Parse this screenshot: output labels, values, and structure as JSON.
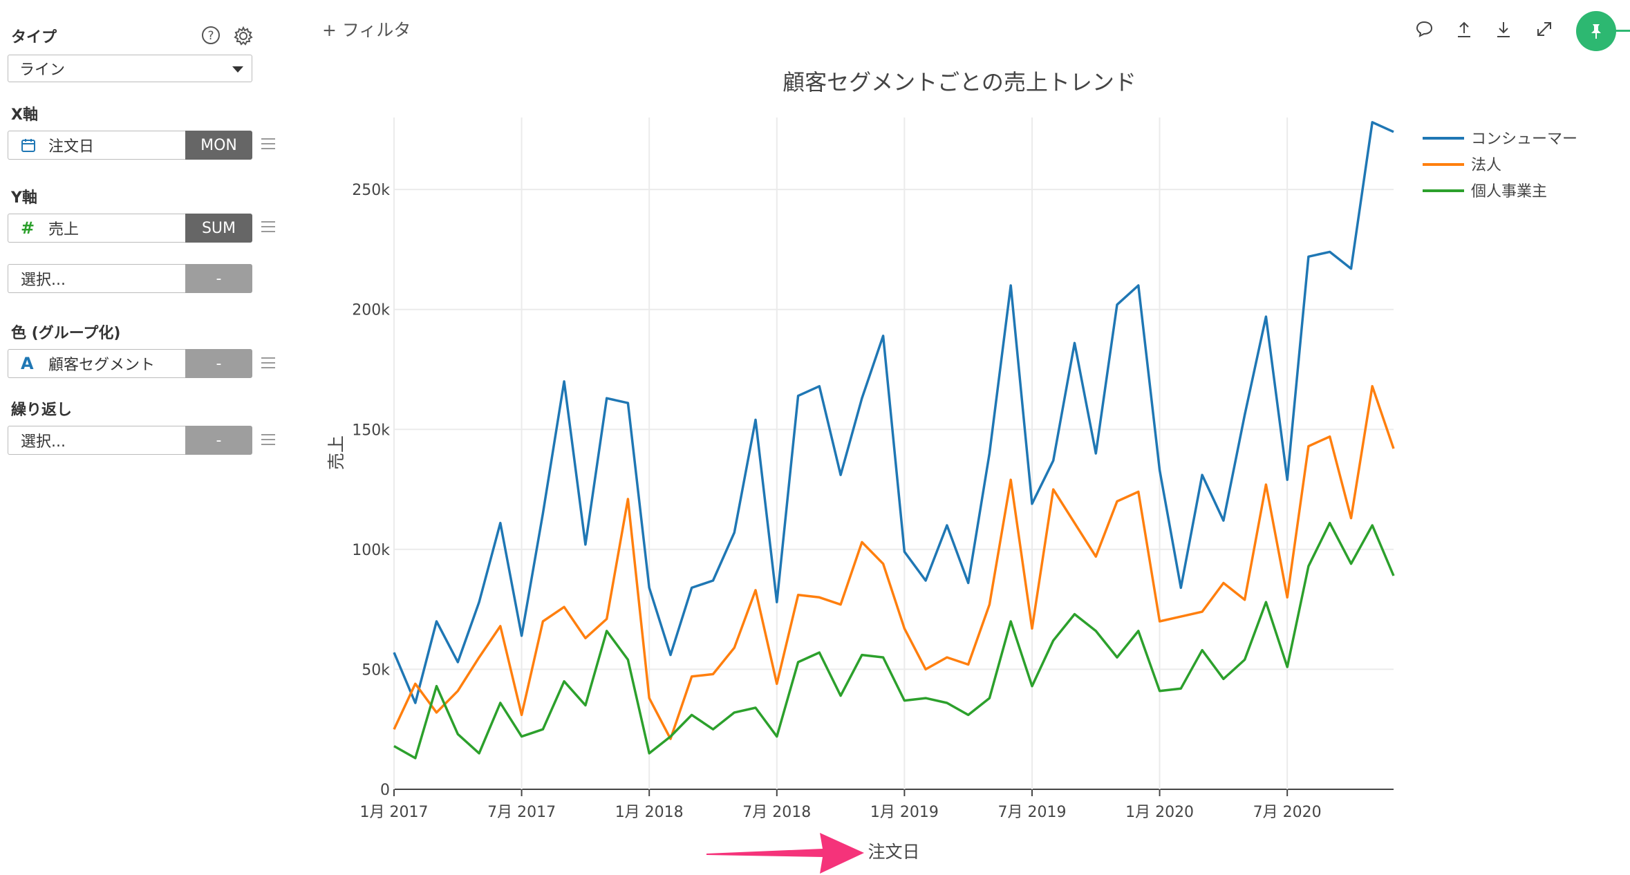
{
  "sidebar": {
    "type_label": "タイプ",
    "type_value": "ライン",
    "help_icon": "help-icon",
    "settings_icon": "gear-icon",
    "x_label": "X軸",
    "x_field": "注文日",
    "x_agg": "MON",
    "y_label": "Y軸",
    "y_field": "売上",
    "y_agg": "SUM",
    "y2_placeholder": "選択...",
    "y2_agg": "-",
    "color_label": "色 (グループ化)",
    "color_field": "顧客セグメント",
    "color_agg": "-",
    "repeat_label": "繰り返し",
    "repeat_placeholder": "選択...",
    "repeat_agg": "-"
  },
  "toolbar": {
    "filter_label": "+ フィルタ",
    "icons": [
      "comment-icon",
      "upload-icon",
      "download-icon",
      "expand-icon",
      "pin-icon"
    ]
  },
  "colors": {
    "consumer": "#1f77b4",
    "corporate": "#ff7f0e",
    "home_office": "#2ca02c",
    "accent": "#2db871",
    "arrow": "#f5337a"
  },
  "chart_data": {
    "type": "line",
    "title": "顧客セグメントごとの売上トレンド",
    "xlabel": "注文日",
    "ylabel": "売上",
    "x_tick_labels": [
      "1月 2017",
      "7月 2017",
      "1月 2018",
      "7月 2018",
      "1月 2019",
      "7月 2019",
      "1月 2020",
      "7月 2020"
    ],
    "y_tick_labels": [
      "0",
      "50k",
      "100k",
      "150k",
      "200k",
      "250k"
    ],
    "ylim": [
      0,
      280000
    ],
    "x_start": "2017-01",
    "legend_position": "top-right",
    "grid": true,
    "series": [
      {
        "name": "コンシューマー",
        "values": [
          57000,
          36000,
          70000,
          53000,
          78000,
          111000,
          64000,
          115000,
          170000,
          102000,
          163000,
          161000,
          84000,
          56000,
          84000,
          87000,
          107000,
          154000,
          78000,
          164000,
          168000,
          131000,
          163000,
          189000,
          99000,
          87000,
          110000,
          86000,
          140000,
          210000,
          119000,
          137000,
          186000,
          140000,
          202000,
          210000,
          133000,
          84000,
          131000,
          112000,
          156000,
          197000,
          129000,
          222000,
          224000,
          217000,
          278000,
          274000
        ]
      },
      {
        "name": "法人",
        "values": [
          25000,
          44000,
          32000,
          41000,
          55000,
          68000,
          31000,
          70000,
          76000,
          63000,
          71000,
          121000,
          38000,
          21000,
          47000,
          48000,
          59000,
          83000,
          44000,
          81000,
          80000,
          77000,
          103000,
          94000,
          67000,
          50000,
          55000,
          52000,
          77000,
          129000,
          67000,
          125000,
          111000,
          97000,
          120000,
          124000,
          70000,
          72000,
          74000,
          86000,
          79000,
          127000,
          80000,
          143000,
          147000,
          113000,
          168000,
          142000
        ]
      },
      {
        "name": "個人事業主",
        "values": [
          18000,
          13000,
          43000,
          23000,
          15000,
          36000,
          22000,
          25000,
          45000,
          35000,
          66000,
          54000,
          15000,
          22000,
          31000,
          25000,
          32000,
          34000,
          22000,
          53000,
          57000,
          39000,
          56000,
          55000,
          37000,
          38000,
          36000,
          31000,
          38000,
          70000,
          43000,
          62000,
          73000,
          66000,
          55000,
          66000,
          41000,
          42000,
          58000,
          46000,
          54000,
          78000,
          51000,
          93000,
          111000,
          94000,
          110000,
          89000
        ]
      }
    ]
  }
}
